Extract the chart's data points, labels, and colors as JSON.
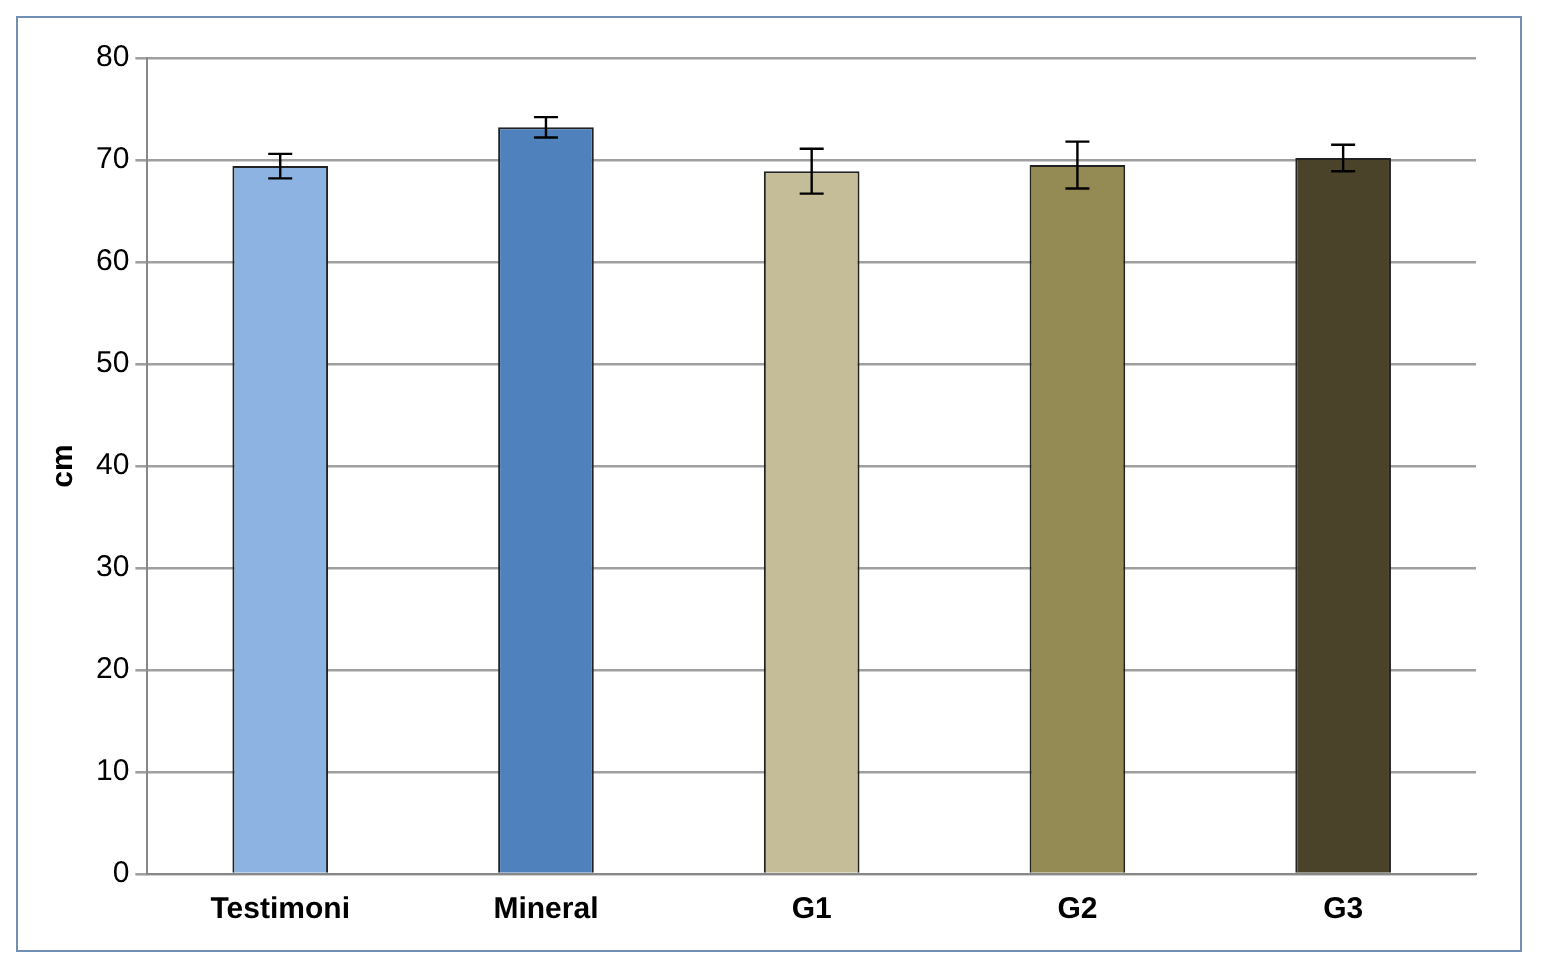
{
  "chart_data": {
    "type": "bar",
    "ylabel": "cm",
    "categories": [
      "Testimoni",
      "Mineral",
      "G1",
      "G2",
      "G3"
    ],
    "values": [
      69.4,
      73.2,
      68.9,
      69.5,
      70.2
    ],
    "colors": [
      "#8db3e2",
      "#4f81bd",
      "#c4bd97",
      "#948a54",
      "#4a432a"
    ],
    "errors": [
      1.2,
      1.0,
      2.2,
      2.3,
      1.3
    ],
    "ylim": [
      0,
      80
    ],
    "yticks": [
      0,
      10,
      20,
      30,
      40,
      50,
      60,
      70,
      80
    ],
    "grid": "y",
    "legend": false
  }
}
